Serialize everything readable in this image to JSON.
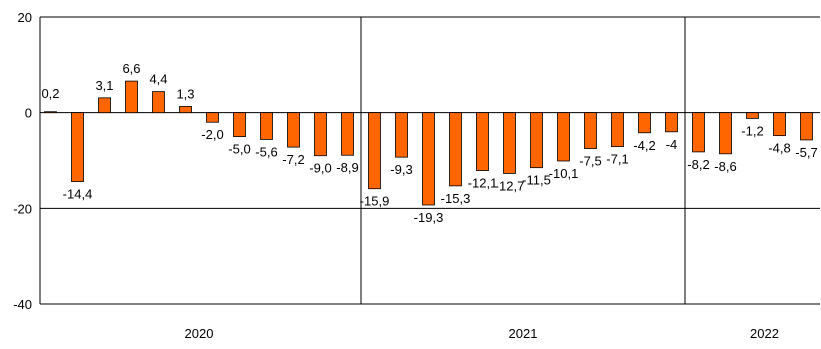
{
  "chart_data": {
    "type": "bar",
    "title": "",
    "xlabel": "",
    "ylabel": "",
    "ylim": [
      -40,
      20
    ],
    "yticks": [
      "20",
      "0",
      "-20",
      "-40"
    ],
    "ytick_values": [
      20,
      0,
      -20,
      -40
    ],
    "grid": true,
    "legend": "none",
    "bar_color": "#FF6600",
    "bar_outline": "#000000",
    "years": [
      {
        "label": "2020",
        "bars": 12
      },
      {
        "label": "2021",
        "bars": 12
      },
      {
        "label": "2022",
        "bars": 5
      }
    ],
    "values": [
      0.2,
      -14.4,
      3.1,
      6.6,
      4.4,
      1.3,
      -2.0,
      -5.0,
      -5.6,
      -7.2,
      -9.0,
      -8.9,
      -15.9,
      -9.3,
      -19.3,
      -15.3,
      -12.1,
      -12.7,
      -11.5,
      -10.1,
      -7.5,
      -7.1,
      -4.2,
      -4.0,
      -8.2,
      -8.6,
      -1.2,
      -4.8,
      -5.7
    ],
    "value_labels": [
      "0,2",
      "-14,4",
      "3,1",
      "6,6",
      "4,4",
      "1,3",
      "-2,0",
      "-5,0",
      "-5,6",
      "-7,2",
      "-9,0",
      "-8,9",
      "-15,9",
      "-9,3",
      "-19,3",
      "-15,3",
      "-12,1",
      "-12,7",
      "-11,5",
      "-10,1",
      "-7,5",
      "-7,1",
      "-4,2",
      "-4",
      "-8,2",
      "-8,6",
      "-1,2",
      "-4,8",
      "-5,7"
    ]
  }
}
